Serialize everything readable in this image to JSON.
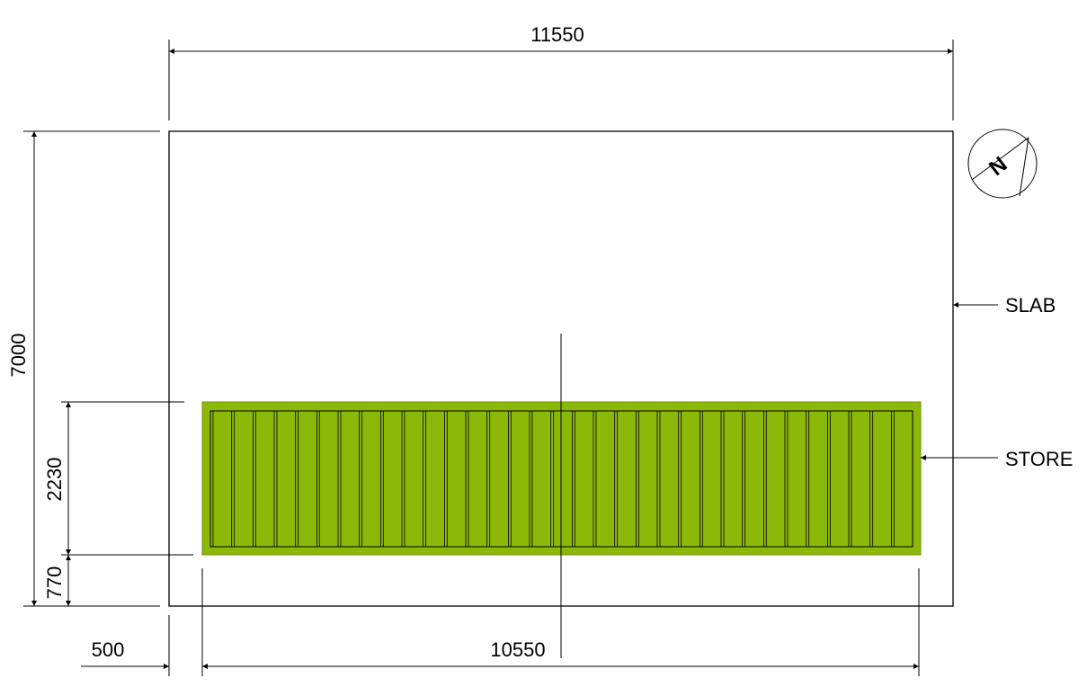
{
  "dimensions": {
    "overall_width": "11550",
    "overall_height": "7000",
    "store_height": "2230",
    "store_offset_bottom": "770",
    "store_offset_left": "500",
    "store_width": "10550"
  },
  "labels": {
    "slab": "SLAB",
    "store": "STORE"
  },
  "store": {
    "fill_color": "#8cb80a",
    "panel_count": 33
  },
  "north_arrow": {
    "letter": "N",
    "icon": "north-arrow-icon"
  }
}
